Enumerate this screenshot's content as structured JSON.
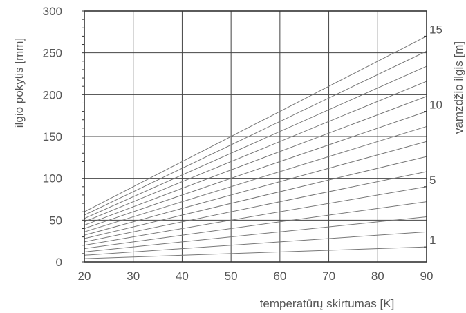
{
  "chart_data": {
    "type": "line",
    "title": "",
    "xlabel": "temperatūrų skirtumas [K]",
    "ylabel": "ilgio pokytis [mm]",
    "y2label": "vamzdžio ilgis [m]",
    "xlim": [
      20,
      90
    ],
    "ylim": [
      0,
      300
    ],
    "x_ticks": [
      "20",
      "30",
      "40",
      "50",
      "60",
      "70",
      "80",
      "90"
    ],
    "y_ticks": [
      "0",
      "50",
      "100",
      "150",
      "200",
      "250",
      "300"
    ],
    "y2_ticks": [
      {
        "label": "1",
        "value": 18
      },
      {
        "label": "5",
        "value": 90
      },
      {
        "label": "10",
        "value": 180
      },
      {
        "label": "15",
        "value": 270
      }
    ],
    "grid": true,
    "series": [
      {
        "length_m": 1,
        "x": [
          20,
          90
        ],
        "y": [
          4,
          18
        ]
      },
      {
        "length_m": 2,
        "x": [
          20,
          90
        ],
        "y": [
          8,
          36
        ]
      },
      {
        "length_m": 3,
        "x": [
          20,
          90
        ],
        "y": [
          12,
          54
        ]
      },
      {
        "length_m": 4,
        "x": [
          20,
          90
        ],
        "y": [
          16,
          72
        ]
      },
      {
        "length_m": 5,
        "x": [
          20,
          90
        ],
        "y": [
          20,
          90
        ]
      },
      {
        "length_m": 6,
        "x": [
          20,
          90
        ],
        "y": [
          24,
          108
        ]
      },
      {
        "length_m": 7,
        "x": [
          20,
          90
        ],
        "y": [
          28,
          126
        ]
      },
      {
        "length_m": 8,
        "x": [
          20,
          90
        ],
        "y": [
          32,
          144
        ]
      },
      {
        "length_m": 9,
        "x": [
          20,
          90
        ],
        "y": [
          36,
          162
        ]
      },
      {
        "length_m": 10,
        "x": [
          20,
          90
        ],
        "y": [
          40,
          180
        ]
      },
      {
        "length_m": 11,
        "x": [
          20,
          90
        ],
        "y": [
          44,
          198
        ]
      },
      {
        "length_m": 12,
        "x": [
          20,
          90
        ],
        "y": [
          48,
          216
        ]
      },
      {
        "length_m": 13,
        "x": [
          20,
          90
        ],
        "y": [
          52,
          234
        ]
      },
      {
        "length_m": 14,
        "x": [
          20,
          90
        ],
        "y": [
          56,
          252
        ]
      },
      {
        "length_m": 15,
        "x": [
          20,
          90
        ],
        "y": [
          60,
          270
        ]
      }
    ],
    "colors": {
      "grid": "#444444",
      "series": "#777777",
      "text": "#555555",
      "axis": "#333333"
    }
  }
}
